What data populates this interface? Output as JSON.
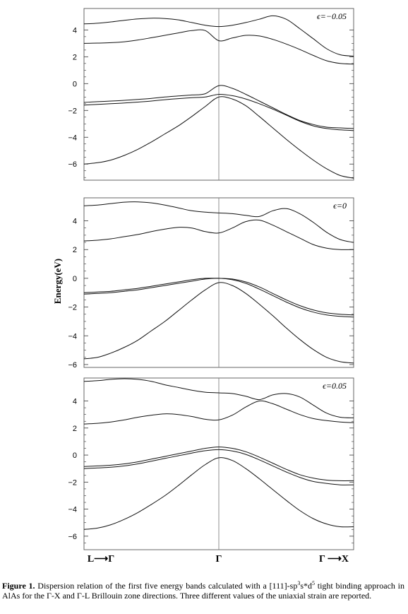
{
  "chart_data": [
    {
      "type": "line",
      "annotation": "ϵ=−0.05",
      "ylim": [
        -7.2,
        5.6
      ],
      "yticks": [
        4,
        2,
        0,
        -2,
        -4,
        -6
      ],
      "x": [
        0,
        0.05,
        0.1,
        0.15,
        0.2,
        0.25,
        0.3,
        0.35,
        0.4,
        0.45,
        0.5,
        0.55,
        0.6,
        0.65,
        0.7,
        0.75,
        0.8,
        0.85,
        0.9,
        0.95,
        1
      ],
      "series": [
        {
          "values": [
            -6.0,
            -5.9,
            -5.7,
            -5.35,
            -4.9,
            -4.35,
            -3.75,
            -3.15,
            -2.45,
            -1.7,
            -1.0,
            -1.15,
            -1.65,
            -2.45,
            -3.3,
            -4.15,
            -4.95,
            -5.7,
            -6.35,
            -6.85,
            -7.05
          ]
        },
        {
          "values": [
            -1.6,
            -1.55,
            -1.5,
            -1.45,
            -1.38,
            -1.3,
            -1.2,
            -1.12,
            -1.05,
            -1.0,
            -0.8,
            -0.9,
            -1.15,
            -1.5,
            -1.9,
            -2.35,
            -2.8,
            -3.15,
            -3.35,
            -3.45,
            -3.5
          ]
        },
        {
          "values": [
            -1.4,
            -1.35,
            -1.3,
            -1.25,
            -1.18,
            -1.1,
            -1.0,
            -0.92,
            -0.85,
            -0.75,
            -0.15,
            -0.35,
            -0.8,
            -1.3,
            -1.8,
            -2.3,
            -2.75,
            -3.05,
            -3.25,
            -3.3,
            -3.35
          ]
        },
        {
          "values": [
            3.0,
            3.02,
            3.05,
            3.12,
            3.25,
            3.42,
            3.6,
            3.78,
            3.95,
            3.95,
            3.2,
            3.4,
            3.6,
            3.55,
            3.3,
            2.95,
            2.55,
            2.1,
            1.7,
            1.5,
            1.45
          ]
        },
        {
          "values": [
            4.45,
            4.5,
            4.6,
            4.72,
            4.82,
            4.88,
            4.85,
            4.75,
            4.55,
            4.35,
            4.25,
            4.35,
            4.55,
            4.8,
            5.05,
            4.8,
            4.1,
            3.35,
            2.6,
            2.15,
            2.05
          ]
        }
      ]
    },
    {
      "type": "line",
      "annotation": "ϵ=0",
      "ylim": [
        -6.2,
        5.6
      ],
      "yticks": [
        4,
        2,
        0,
        -2,
        -4,
        -6
      ],
      "x": [
        0,
        0.05,
        0.1,
        0.15,
        0.2,
        0.25,
        0.3,
        0.35,
        0.4,
        0.45,
        0.5,
        0.55,
        0.6,
        0.65,
        0.7,
        0.75,
        0.8,
        0.85,
        0.9,
        0.95,
        1
      ],
      "series": [
        {
          "values": [
            -5.6,
            -5.5,
            -5.2,
            -4.8,
            -4.3,
            -3.65,
            -3.0,
            -2.25,
            -1.5,
            -0.8,
            -0.3,
            -0.5,
            -1.05,
            -1.8,
            -2.6,
            -3.45,
            -4.25,
            -4.95,
            -5.5,
            -5.8,
            -5.9
          ]
        },
        {
          "values": [
            -1.1,
            -1.05,
            -1.0,
            -0.9,
            -0.8,
            -0.65,
            -0.5,
            -0.35,
            -0.2,
            -0.05,
            0.0,
            -0.1,
            -0.35,
            -0.75,
            -1.2,
            -1.65,
            -2.05,
            -2.35,
            -2.55,
            -2.65,
            -2.7
          ]
        },
        {
          "values": [
            -1.0,
            -0.95,
            -0.9,
            -0.8,
            -0.7,
            -0.55,
            -0.4,
            -0.25,
            -0.1,
            0.0,
            0.0,
            -0.05,
            -0.25,
            -0.6,
            -1.05,
            -1.5,
            -1.9,
            -2.2,
            -2.4,
            -2.5,
            -2.55
          ]
        },
        {
          "values": [
            2.6,
            2.65,
            2.75,
            2.9,
            3.05,
            3.25,
            3.42,
            3.55,
            3.5,
            3.25,
            3.15,
            3.5,
            3.95,
            4.05,
            3.7,
            3.25,
            2.8,
            2.35,
            2.1,
            2.0,
            2.0
          ]
        },
        {
          "values": [
            5.05,
            5.1,
            5.2,
            5.3,
            5.32,
            5.25,
            5.1,
            4.9,
            4.7,
            4.6,
            4.55,
            4.5,
            4.38,
            4.3,
            4.7,
            4.85,
            4.5,
            3.9,
            3.2,
            2.7,
            2.5
          ]
        }
      ]
    },
    {
      "type": "line",
      "annotation": "ϵ=0.05",
      "ylim": [
        -7.0,
        5.7
      ],
      "yticks": [
        4,
        2,
        0,
        -2,
        -4,
        -6
      ],
      "x": [
        0,
        0.05,
        0.1,
        0.15,
        0.2,
        0.25,
        0.3,
        0.35,
        0.4,
        0.45,
        0.5,
        0.55,
        0.6,
        0.65,
        0.7,
        0.75,
        0.8,
        0.85,
        0.9,
        0.95,
        1
      ],
      "series": [
        {
          "values": [
            -5.5,
            -5.4,
            -5.15,
            -4.75,
            -4.25,
            -3.65,
            -3.0,
            -2.25,
            -1.45,
            -0.7,
            -0.2,
            -0.4,
            -1.0,
            -1.75,
            -2.55,
            -3.35,
            -4.1,
            -4.7,
            -5.1,
            -5.3,
            -5.3
          ]
        },
        {
          "values": [
            -1.0,
            -0.95,
            -0.9,
            -0.8,
            -0.65,
            -0.45,
            -0.25,
            -0.05,
            0.15,
            0.32,
            0.4,
            0.3,
            0.05,
            -0.35,
            -0.8,
            -1.25,
            -1.65,
            -1.95,
            -2.1,
            -2.2,
            -2.2
          ]
        },
        {
          "values": [
            -0.85,
            -0.8,
            -0.75,
            -0.65,
            -0.5,
            -0.3,
            -0.1,
            0.1,
            0.3,
            0.5,
            0.6,
            0.5,
            0.25,
            -0.15,
            -0.6,
            -1.05,
            -1.45,
            -1.7,
            -1.85,
            -1.9,
            -1.9
          ]
        },
        {
          "values": [
            2.3,
            2.35,
            2.45,
            2.6,
            2.8,
            2.95,
            3.05,
            3.0,
            2.85,
            2.65,
            2.6,
            2.95,
            3.55,
            4.0,
            3.8,
            3.4,
            3.0,
            2.7,
            2.55,
            2.45,
            2.4
          ]
        },
        {
          "values": [
            5.45,
            5.5,
            5.6,
            5.65,
            5.6,
            5.45,
            5.2,
            5.0,
            4.8,
            4.65,
            4.6,
            4.55,
            4.35,
            4.1,
            4.45,
            4.55,
            4.3,
            3.7,
            3.1,
            2.8,
            2.75
          ]
        }
      ]
    }
  ],
  "figure": {
    "ylabel": "Energy(eV)",
    "xticks": [
      "L⟶Γ",
      "Γ",
      "Γ ⟶X"
    ]
  },
  "caption": {
    "label": "Figure 1.",
    "text_1": " Dispersion relation of the first five energy bands calculated with a [111]-sp",
    "sup_1": "3",
    "text_2": "s*d",
    "sup_2": "5",
    "text_3": " tight binding approach in AlAs for the Γ-X and Γ-L Brillouin zone directions. Three different values of the uniaxial strain are reported."
  }
}
